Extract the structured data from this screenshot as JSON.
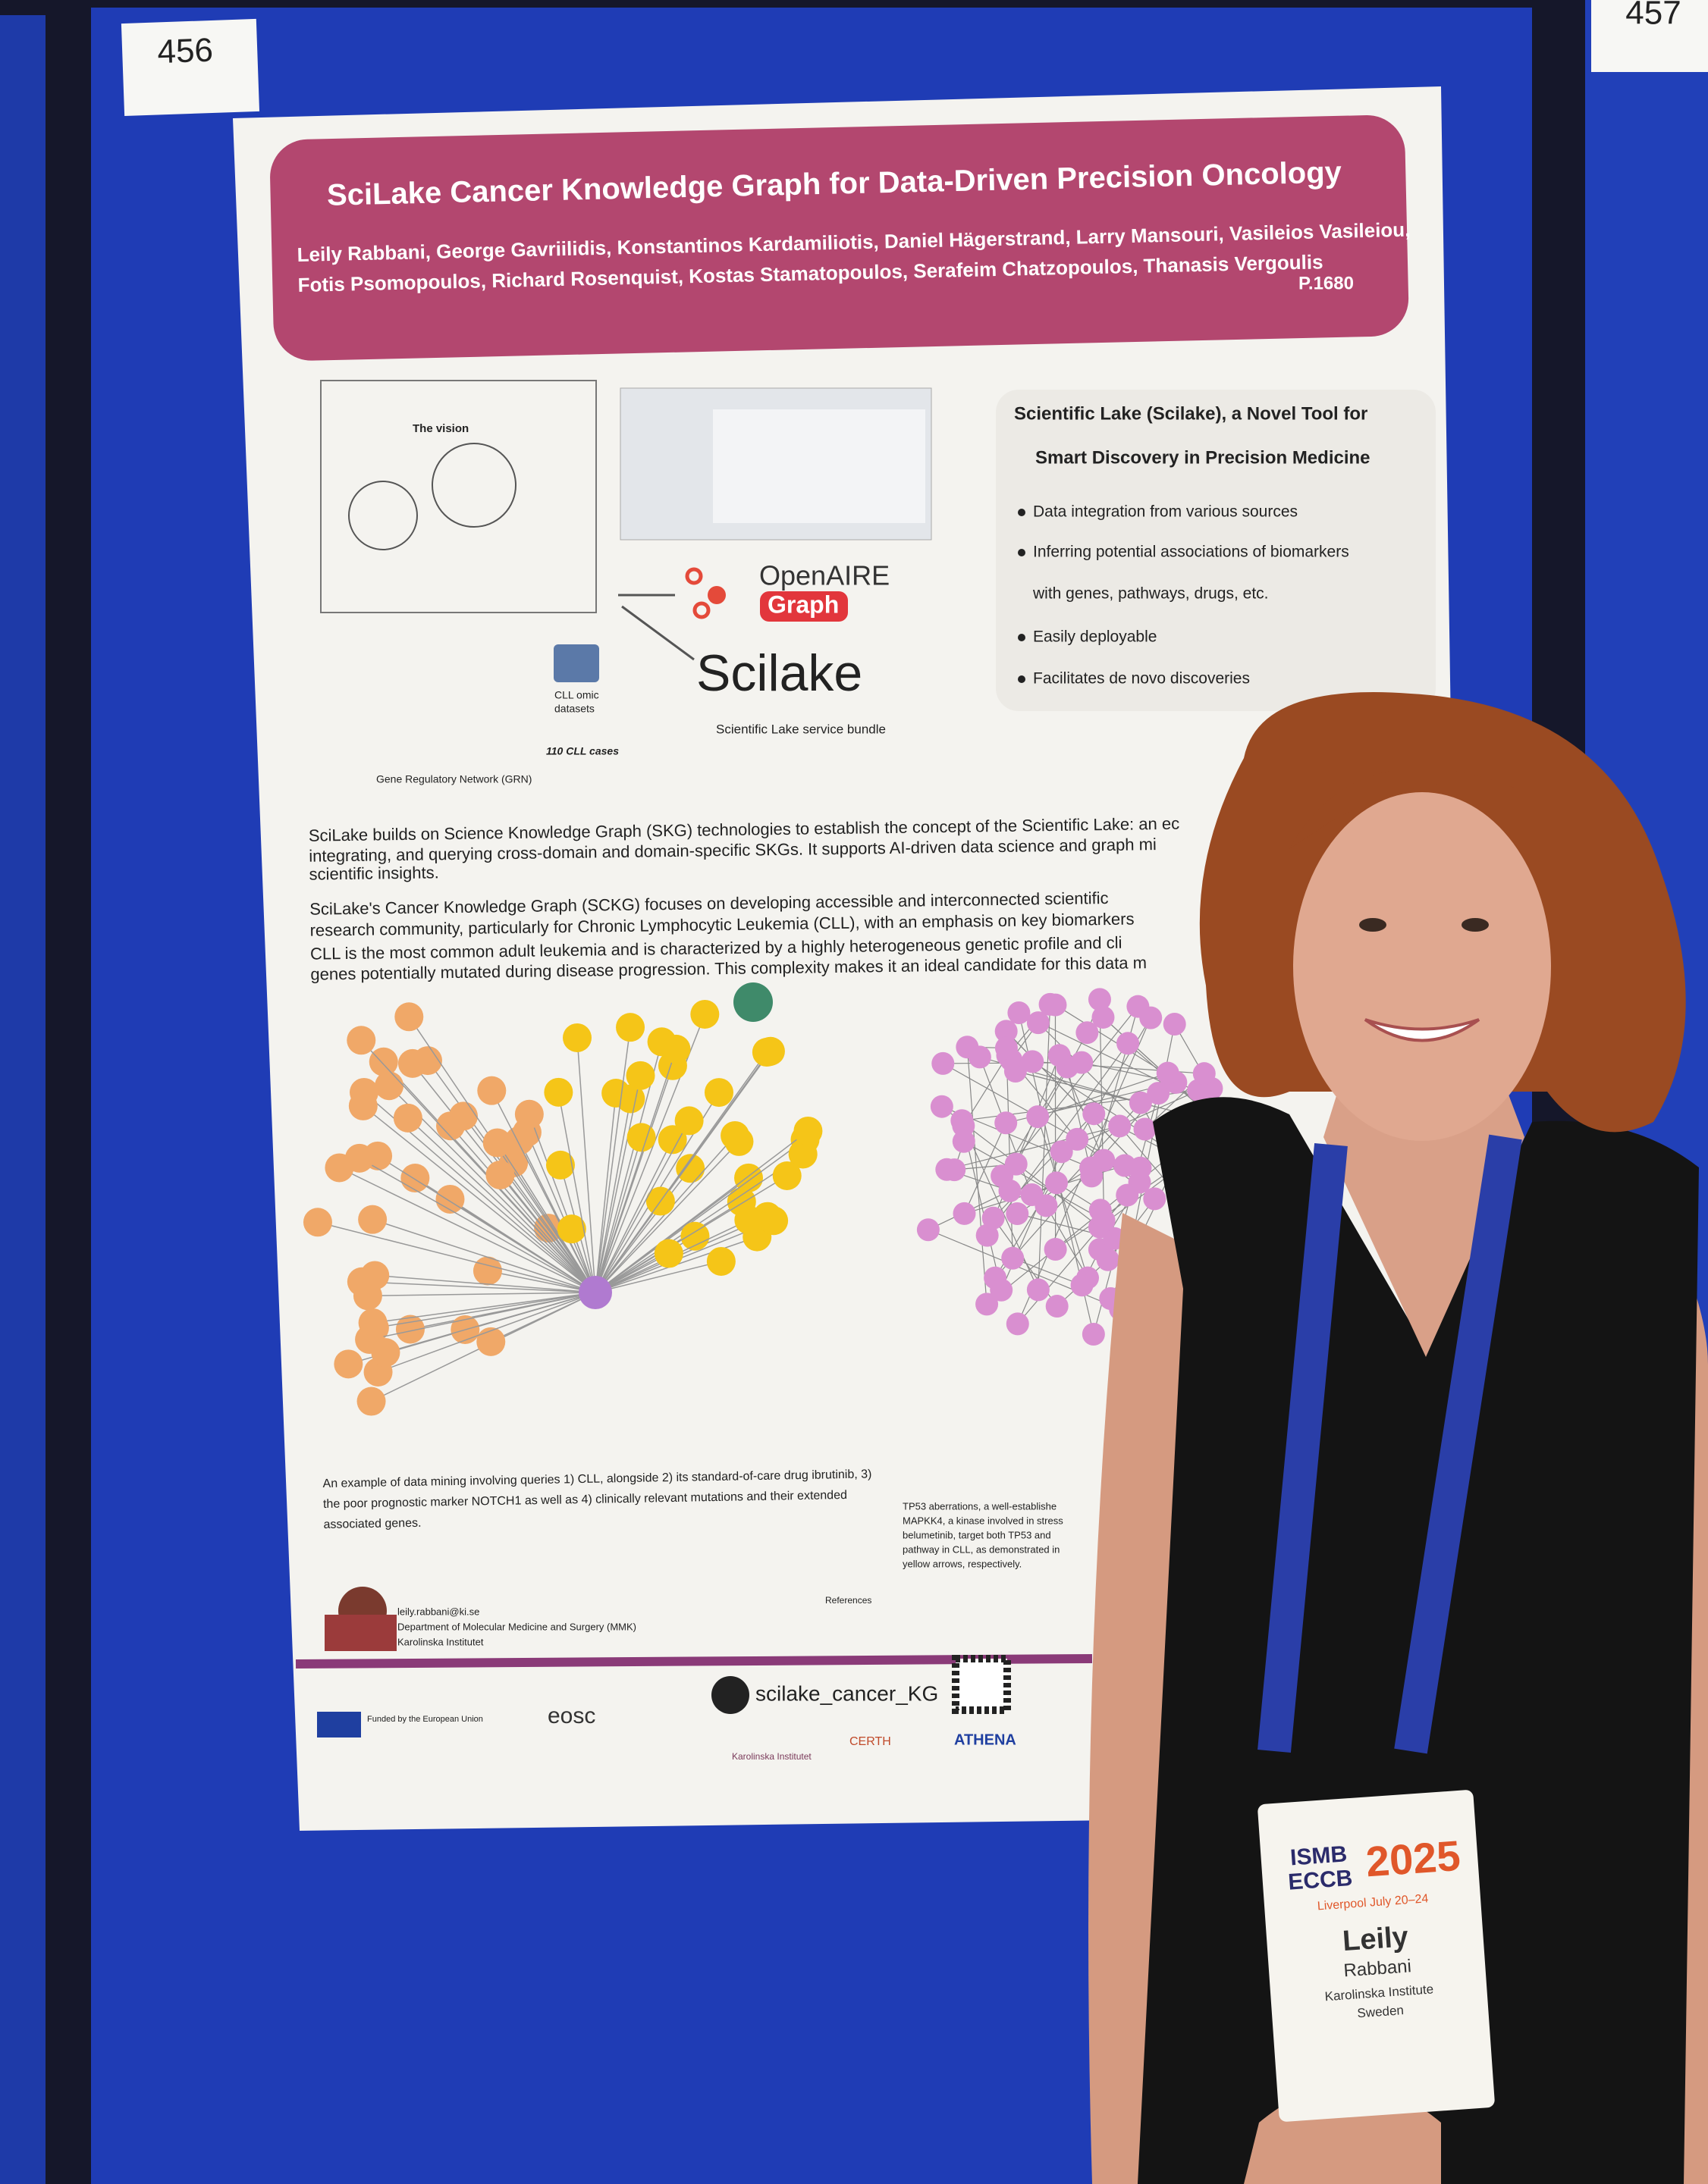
{
  "board": {
    "left_number": "456",
    "right_number": "457"
  },
  "poster": {
    "title": "SciLake Cancer Knowledge Graph for Data-Driven Precision Oncology",
    "authors": [
      "Leily Rabbani, George Gavriilidis, Konstantinos Kardamiliotis, Daniel Hägerstrand, Larry Mansouri, Vasileios Vasileiou,",
      "Fotis Psomopoulos, Richard Rosenquist, Kostas Stamatopoulos, Serafeim Chatzopoulos, Thanasis Vergoulis"
    ],
    "poster_id": "P.1680",
    "figure": {
      "vision": "The vision",
      "omic": [
        "CLL omic",
        "datasets"
      ],
      "cases": "110 CLL cases",
      "grn": "Gene Regulatory Network (GRN)",
      "openaire": "OpenAIRE",
      "graph": "Graph",
      "scilake": "Scilake",
      "bundle": "Scientific Lake service bundle"
    },
    "intro": {
      "heading": [
        "Scientific Lake (Scilake), a Novel Tool for",
        "Smart Discovery in Precision Medicine"
      ],
      "bullets": [
        [
          "Data integration from various sources"
        ],
        [
          "Inferring potential associations of biomarkers",
          "with genes, pathways, drugs, etc."
        ],
        [
          "Easily deployable"
        ],
        [
          "Facilitates de novo discoveries"
        ]
      ]
    },
    "paragraphs": [
      [
        "SciLake builds on Science Knowledge Graph (SKG) technologies to establish the concept of the Scientific Lake: an ec",
        "integrating, and querying cross-domain and domain-specific SKGs. It supports AI-driven data science and graph mi",
        "scientific insights."
      ],
      [
        "SciLake's Cancer Knowledge Graph (SCKG) focuses on developing accessible and interconnected scientific",
        "research community, particularly for Chronic Lymphocytic Leukemia (CLL), with an emphasis on key biomarkers",
        "CLL is the most common adult leukemia and is characterized by a highly heterogeneous genetic profile and cli",
        "genes potentially mutated during disease progression. This complexity makes it an ideal candidate for this data m"
      ]
    ],
    "caption_left": [
      "An example of data mining involving queries 1) CLL, alongside 2) its standard-of-care drug ibrutinib, 3)",
      "the poor prognostic marker NOTCH1 as well as 4) clinically relevant mutations and their extended",
      "associated genes."
    ],
    "caption_right": [
      "TP53 aberrations, a well-establishe",
      "MAPKK4, a kinase involved in stress",
      "belumetinib, target both TP53 and",
      "pathway in CLL, as demonstrated in",
      "yellow arrows, respectively."
    ],
    "contact": [
      "leily.rabbani@ki.se",
      "Department of Molecular Medicine and Surgery (MMK)",
      "Karolinska Institutet"
    ],
    "references": "References",
    "footer": {
      "github": "scilake_cancer_KG",
      "eosc": "eosc",
      "funded": "Funded by the European Union",
      "karolinska": "Karolinska Institutet",
      "certh": "CERTH",
      "athena": "ATHENA"
    }
  },
  "badge": {
    "event": [
      "ISMB",
      "ECCB"
    ],
    "year": "2025",
    "place": "Liverpool July 20–24",
    "first_name": "Leily",
    "last_name": "Rabbani",
    "org": "Karolinska Institute",
    "country": "Sweden"
  }
}
